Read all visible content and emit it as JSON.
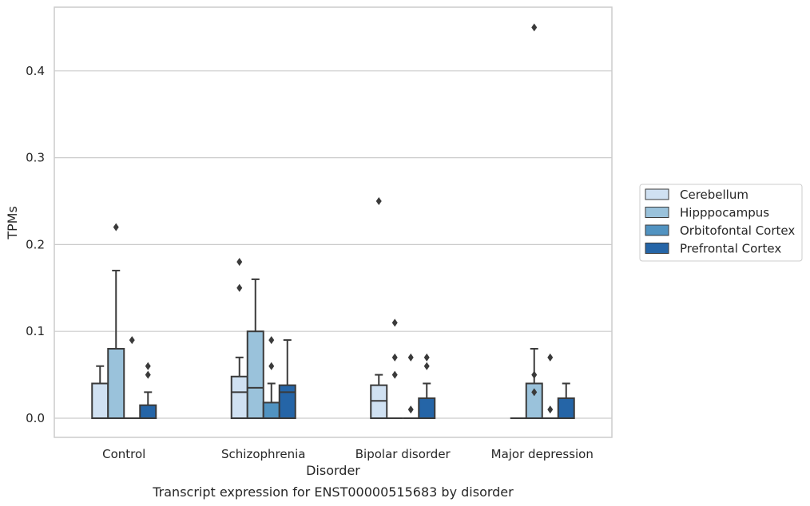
{
  "chart_data": {
    "type": "box",
    "title": "Transcript expression for ENST00000515683 by disorder",
    "xlabel": "Disorder",
    "ylabel": "TPMs",
    "ylim": [
      -0.021,
      0.475
    ],
    "yticks": [
      0.0,
      0.1,
      0.2,
      0.3,
      0.4
    ],
    "ytick_labels": [
      "0.0",
      "0.1",
      "0.2",
      "0.3",
      "0.4"
    ],
    "grid": "horizontal",
    "legend_position": "right",
    "categories": [
      "Control",
      "Schizophrenia",
      "Bipolar disorder",
      "Major depression"
    ],
    "series": [
      {
        "name": "Cerebellum",
        "color": "#d0e1f2",
        "boxes": [
          {
            "q1": 0.0,
            "median": 0.0,
            "q3": 0.04,
            "whislo": 0.0,
            "whishi": 0.06,
            "fliers": []
          },
          {
            "q1": 0.0,
            "median": 0.03,
            "q3": 0.048,
            "whislo": 0.0,
            "whishi": 0.07,
            "fliers": [
              0.15,
              0.18
            ]
          },
          {
            "q1": 0.0,
            "median": 0.02,
            "q3": 0.038,
            "whislo": 0.0,
            "whishi": 0.05,
            "fliers": [
              0.25
            ]
          },
          {
            "q1": 0.0,
            "median": 0.0,
            "q3": 0.0,
            "whislo": 0.0,
            "whishi": 0.0,
            "fliers": []
          }
        ]
      },
      {
        "name": "Hipppocampus",
        "color": "#9ac2db",
        "boxes": [
          {
            "q1": 0.0,
            "median": 0.0,
            "q3": 0.08,
            "whislo": 0.0,
            "whishi": 0.17,
            "fliers": [
              0.22
            ]
          },
          {
            "q1": 0.0,
            "median": 0.035,
            "q3": 0.1,
            "whislo": 0.0,
            "whishi": 0.16,
            "fliers": []
          },
          {
            "q1": 0.0,
            "median": 0.0,
            "q3": 0.0,
            "whislo": 0.0,
            "whishi": 0.0,
            "fliers": [
              0.05,
              0.07,
              0.11
            ]
          },
          {
            "q1": 0.0,
            "median": 0.0,
            "q3": 0.04,
            "whislo": 0.0,
            "whishi": 0.08,
            "fliers": [
              0.03,
              0.05,
              0.45
            ]
          }
        ]
      },
      {
        "name": "Orbitofontal Cortex",
        "color": "#5193c1",
        "boxes": [
          {
            "q1": 0.0,
            "median": 0.0,
            "q3": 0.0,
            "whislo": 0.0,
            "whishi": 0.0,
            "fliers": [
              0.09
            ]
          },
          {
            "q1": 0.0,
            "median": 0.0,
            "q3": 0.018,
            "whislo": 0.0,
            "whishi": 0.04,
            "fliers": [
              0.06,
              0.09
            ]
          },
          {
            "q1": 0.0,
            "median": 0.0,
            "q3": 0.0,
            "whislo": 0.0,
            "whishi": 0.0,
            "fliers": [
              0.01,
              0.07
            ]
          },
          {
            "q1": 0.0,
            "median": 0.0,
            "q3": 0.0,
            "whislo": 0.0,
            "whishi": 0.0,
            "fliers": [
              0.01,
              0.07
            ]
          }
        ]
      },
      {
        "name": "Prefrontal Cortex",
        "color": "#2565a7",
        "boxes": [
          {
            "q1": 0.0,
            "median": 0.0,
            "q3": 0.015,
            "whislo": 0.0,
            "whishi": 0.03,
            "fliers": [
              0.05,
              0.06
            ]
          },
          {
            "q1": 0.0,
            "median": 0.03,
            "q3": 0.038,
            "whislo": 0.0,
            "whishi": 0.09,
            "fliers": []
          },
          {
            "q1": 0.0,
            "median": 0.0,
            "q3": 0.023,
            "whislo": 0.0,
            "whishi": 0.04,
            "fliers": [
              0.06,
              0.07
            ]
          },
          {
            "q1": 0.0,
            "median": 0.0,
            "q3": 0.023,
            "whislo": 0.0,
            "whishi": 0.04,
            "fliers": []
          }
        ]
      }
    ]
  }
}
